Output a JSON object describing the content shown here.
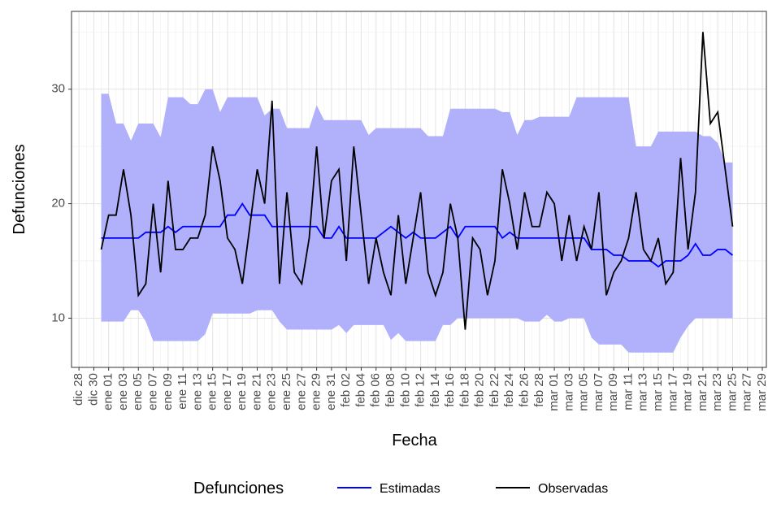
{
  "chart_data": {
    "type": "line",
    "xlabel": "Fecha",
    "ylabel": "Defunciones",
    "legend_title": "Defunciones",
    "legend": "bottom",
    "grid": true,
    "categories": [
      null,
      "dic 28",
      null,
      "dic 30",
      null,
      "ene 01",
      null,
      "ene 03",
      null,
      "ene 05",
      null,
      "ene 07",
      null,
      "ene 09",
      null,
      "ene 11",
      null,
      "ene 13",
      null,
      "ene 15",
      null,
      "ene 17",
      null,
      "ene 19",
      null,
      "ene 21",
      null,
      "ene 23",
      null,
      "ene 25",
      null,
      "ene 27",
      null,
      "ene 29",
      null,
      "ene 31",
      null,
      "feb 02",
      null,
      "feb 04",
      null,
      "feb 06",
      null,
      "feb 08",
      null,
      "feb 10",
      null,
      "feb 12",
      null,
      "feb 14",
      null,
      "feb 16",
      null,
      "feb 18",
      null,
      "feb 20",
      null,
      "feb 22",
      null,
      "feb 24",
      null,
      "feb 26",
      null,
      "feb 28",
      null,
      "mar 01",
      null,
      "mar 03",
      null,
      "mar 05",
      null,
      "mar 07",
      null,
      "mar 09",
      null,
      "mar 11",
      null,
      "mar 13",
      null,
      "mar 15",
      null,
      "mar 17",
      null,
      "mar 19",
      null,
      "mar 21",
      null,
      "mar 23",
      null,
      "mar 25",
      null,
      "mar 27",
      null,
      "mar 29"
    ],
    "ylim": [
      5.7,
      36.8
    ],
    "yticks": [
      10,
      20,
      30
    ],
    "band": {
      "color": "#b0b0fb",
      "upper": [
        null,
        null,
        null,
        null,
        29.6,
        29.6,
        27,
        27,
        25.5,
        27,
        27,
        27,
        25.8,
        29.3,
        29.3,
        29.3,
        28.7,
        28.7,
        30,
        30,
        28,
        29.3,
        29.3,
        29.3,
        29.3,
        29.3,
        27.7,
        28.3,
        28.3,
        26.6,
        26.6,
        26.6,
        26.6,
        28.6,
        27.3,
        27.3,
        27.3,
        27.3,
        27.3,
        27.3,
        26,
        26.6,
        26.6,
        26.6,
        26.6,
        26.6,
        26.6,
        26.6,
        25.9,
        25.9,
        25.9,
        28.3,
        28.3,
        28.3,
        28.3,
        28.3,
        28.3,
        28.3,
        28,
        28,
        26,
        27.3,
        27.3,
        27.6,
        27.6,
        27.6,
        27.6,
        27.6,
        29.3,
        29.3,
        29.3,
        29.3,
        29.3,
        29.3,
        29.3,
        29.3,
        25,
        25,
        25,
        26.3,
        26.3,
        26.3,
        26.3,
        26.3,
        26.3,
        25.9,
        25.9,
        25.3,
        23.6,
        23.6,
        null,
        null,
        null,
        null
      ],
      "lower": [
        null,
        null,
        null,
        null,
        9.7,
        9.7,
        9.7,
        9.7,
        10.7,
        10.7,
        9.7,
        8,
        8,
        8,
        8,
        8,
        8,
        8,
        8.6,
        10.4,
        10.4,
        10.4,
        10.4,
        10.4,
        10.4,
        10.7,
        10.7,
        10.7,
        9.7,
        9,
        9,
        9,
        9,
        9,
        9,
        9,
        9.4,
        8.7,
        9.4,
        9.4,
        9.4,
        9.4,
        9.4,
        8.1,
        8.7,
        8,
        8,
        8,
        8,
        8,
        9.4,
        9.4,
        10,
        10,
        10,
        10,
        10,
        10,
        10,
        10,
        10,
        9.7,
        9.7,
        9.7,
        10.3,
        9.7,
        9.7,
        10,
        10,
        10,
        8.3,
        7.7,
        7.7,
        7.7,
        7.7,
        7,
        7,
        7,
        7,
        7,
        7,
        7,
        8.3,
        9.3,
        10,
        10,
        10,
        10,
        10,
        10,
        null,
        null,
        null,
        null
      ]
    },
    "series": [
      {
        "name": "Estimadas",
        "color": "#0000ff",
        "values": [
          null,
          null,
          null,
          null,
          17,
          17,
          17,
          17,
          17,
          17,
          17.5,
          17.5,
          17.5,
          18,
          17.5,
          18,
          18,
          18,
          18,
          18,
          18,
          19,
          19,
          20,
          19,
          19,
          19,
          18,
          18,
          18,
          18,
          18,
          18,
          18,
          17,
          17,
          18,
          17,
          17,
          17,
          17,
          17,
          17.5,
          18,
          17.5,
          17,
          17.5,
          17,
          17,
          17,
          17.5,
          18,
          17,
          18,
          18,
          18,
          18,
          18,
          17,
          17.5,
          17,
          17,
          17,
          17,
          17,
          17,
          17,
          17,
          17,
          17,
          16,
          16,
          16,
          15.5,
          15.5,
          15,
          15,
          15,
          15,
          14.5,
          15,
          15,
          15,
          15.5,
          16.5,
          15.5,
          15.5,
          16,
          16,
          15.5,
          null,
          null,
          null,
          null
        ]
      },
      {
        "name": "Observadas",
        "color": "#000000",
        "values": [
          null,
          null,
          null,
          null,
          16,
          19,
          19,
          23,
          19,
          12,
          13,
          20,
          14,
          22,
          16,
          16,
          17,
          17,
          19,
          25,
          22,
          17,
          16,
          13,
          18,
          23,
          20,
          29,
          13,
          21,
          14,
          13,
          17,
          25,
          17,
          22,
          23,
          15,
          25,
          19,
          13,
          17,
          14,
          12,
          19,
          13,
          17,
          21,
          14,
          12,
          14,
          20,
          17,
          9,
          17,
          16,
          12,
          15,
          23,
          20,
          16,
          21,
          18,
          18,
          21,
          20,
          15,
          19,
          15,
          18,
          16,
          21,
          12,
          14,
          15,
          17,
          21,
          16,
          15,
          17,
          13,
          14,
          24,
          16,
          21,
          35,
          27,
          28,
          23,
          18,
          null,
          null,
          null,
          null
        ]
      }
    ]
  }
}
